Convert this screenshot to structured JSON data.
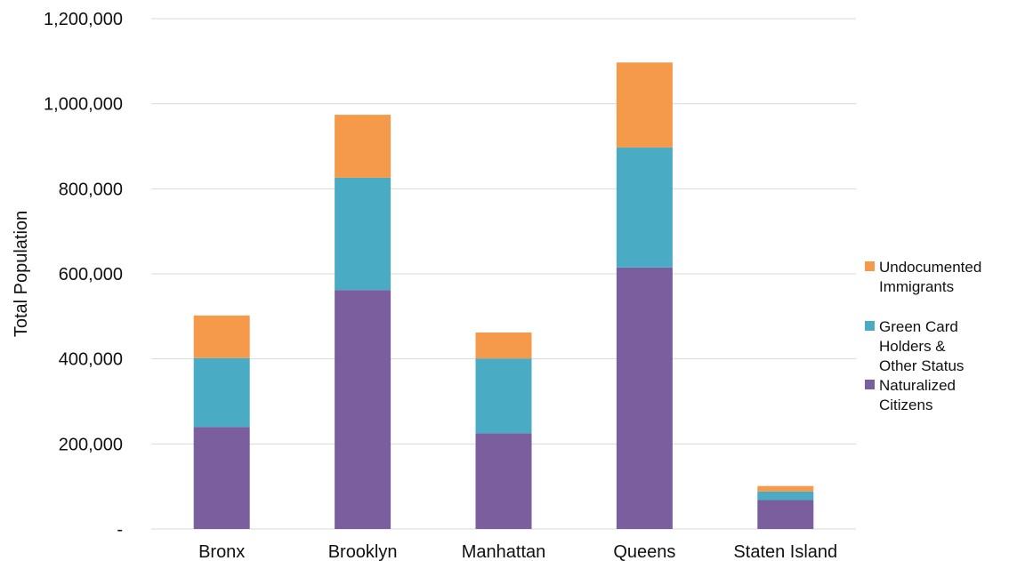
{
  "chart_data": {
    "type": "bar",
    "stacked": true,
    "ylabel": "Total Population",
    "xlabel": "",
    "ylim": [
      0,
      1200000
    ],
    "y_ticks": [
      0,
      200000,
      400000,
      600000,
      800000,
      1000000,
      1200000
    ],
    "y_tick_labels": [
      "-",
      "200,000",
      "400,000",
      "600,000",
      "800,000",
      "1,000,000",
      "1,200,000"
    ],
    "grid": true,
    "legend_position": "right",
    "categories": [
      "Bronx",
      "Brooklyn",
      "Manhattan",
      "Queens",
      "Staten Island"
    ],
    "series": [
      {
        "name": "Naturalized Citizens",
        "legend_lines": [
          "Naturalized",
          "Citizens"
        ],
        "color": "#7b5e9e",
        "values": [
          240000,
          562000,
          225000,
          615000,
          68000
        ]
      },
      {
        "name": "Green Card Holders & Other Status",
        "legend_lines": [
          "Green Card",
          "Holders &",
          "Other Status"
        ],
        "color": "#4aabc4",
        "values": [
          162000,
          264000,
          176000,
          282000,
          20000
        ]
      },
      {
        "name": "Undocumented Immigrants",
        "legend_lines": [
          "Undocumented",
          "Immigrants"
        ],
        "color": "#f59a4a",
        "values": [
          100000,
          148000,
          61000,
          200000,
          13000
        ]
      }
    ],
    "legend_order": [
      2,
      1,
      0
    ]
  }
}
